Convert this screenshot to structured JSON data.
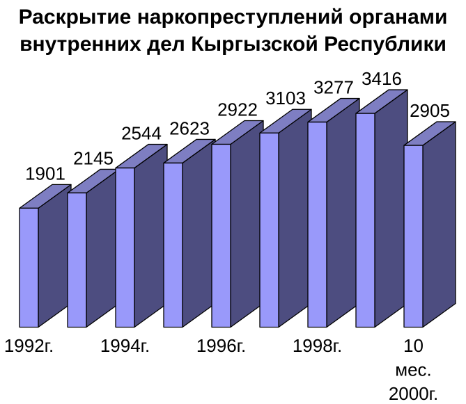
{
  "title": {
    "line1": "Раскрытие наркопреступлений органами",
    "line2": "внутренних дел Кыргызской Республики"
  },
  "chart_data": {
    "type": "bar",
    "projection": "3d-oblique",
    "title": "Раскрытие наркопреступлений органами внутренних дел Кыргызской Республики",
    "values": [
      1901,
      2145,
      2544,
      2623,
      2922,
      3103,
      3277,
      3416,
      2905
    ],
    "data_labels": [
      "1901",
      "2145",
      "2544",
      "2623",
      "2922",
      "3103",
      "3277",
      "3416",
      "2905"
    ],
    "x_tick_labels": [
      {
        "bar_index": 0,
        "lines": [
          "1992г."
        ]
      },
      {
        "bar_index": 2,
        "lines": [
          "1994г."
        ]
      },
      {
        "bar_index": 4,
        "lines": [
          "1996г."
        ]
      },
      {
        "bar_index": 6,
        "lines": [
          "1998г."
        ]
      },
      {
        "bar_index": 8,
        "lines": [
          "10",
          "мес.",
          "2000г."
        ]
      }
    ],
    "ylim": [
      0,
      3600
    ],
    "grid": false,
    "legend": false,
    "colors": {
      "bar_front": "#9999FA",
      "bar_top": "#7E7EC2",
      "bar_side": "#4D4D80",
      "outline": "#000000",
      "background": "#FFFFFF",
      "text": "#000000"
    }
  }
}
